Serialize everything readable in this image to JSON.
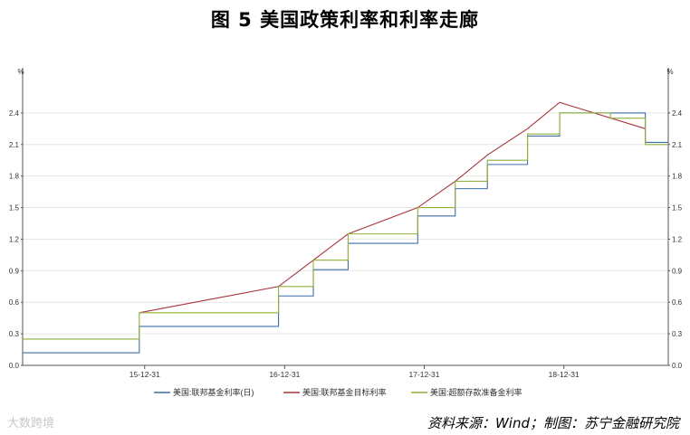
{
  "title": "图 5  美国政策利率和利率走廊",
  "source": "资料来源：Wind；制图：苏宁金融研究院",
  "watermark": "大数跨境",
  "chart_data": {
    "type": "line",
    "y_unit_left": "%",
    "y_unit_right": "%",
    "ylim": [
      0,
      2.7
    ],
    "yticks": [
      "0.0",
      "0.3",
      "0.6",
      "0.9",
      "1.2",
      "1.5",
      "1.8",
      "2.1",
      "2.4"
    ],
    "xlim": [
      "2015-02-15",
      "2019-09-30"
    ],
    "xticks": [
      {
        "date": "2015-12-31",
        "label": "15-12-31"
      },
      {
        "date": "2016-12-31",
        "label": "16-12-31"
      },
      {
        "date": "2017-12-31",
        "label": "17-12-31"
      },
      {
        "date": "2018-12-31",
        "label": "18-12-31"
      }
    ],
    "grid": true,
    "legend_position": "bottom",
    "colors": {
      "effr": "#3b6fa8",
      "target": "#a8343c",
      "ioer": "#8fb03a"
    },
    "series": [
      {
        "name": "美国:联邦基金利率(日)",
        "key": "effr",
        "steps": [
          [
            "2015-02-15",
            0.12
          ],
          [
            "2015-12-17",
            0.37
          ],
          [
            "2016-12-15",
            0.66
          ],
          [
            "2017-03-16",
            0.91
          ],
          [
            "2017-06-15",
            1.16
          ],
          [
            "2017-12-14",
            1.42
          ],
          [
            "2018-03-22",
            1.68
          ],
          [
            "2018-06-14",
            1.91
          ],
          [
            "2018-09-27",
            2.18
          ],
          [
            "2018-12-20",
            2.4
          ],
          [
            "2019-08-01",
            2.12
          ],
          [
            "2019-09-30",
            2.12
          ]
        ]
      },
      {
        "name": "美国:联邦基金目标利率",
        "key": "target",
        "points": [
          [
            "2015-12-17",
            0.5
          ],
          [
            "2016-12-15",
            0.75
          ],
          [
            "2017-03-16",
            1.0
          ],
          [
            "2017-06-15",
            1.25
          ],
          [
            "2017-12-14",
            1.5
          ],
          [
            "2018-03-22",
            1.75
          ],
          [
            "2018-06-14",
            2.0
          ],
          [
            "2018-09-27",
            2.25
          ],
          [
            "2018-12-20",
            2.5
          ],
          [
            "2019-08-01",
            2.25
          ]
        ]
      },
      {
        "name": "美国:超额存款准备金利率",
        "key": "ioer",
        "steps": [
          [
            "2015-02-15",
            0.25
          ],
          [
            "2015-12-17",
            0.5
          ],
          [
            "2016-12-15",
            0.75
          ],
          [
            "2017-03-16",
            1.0
          ],
          [
            "2017-06-15",
            1.25
          ],
          [
            "2017-12-14",
            1.5
          ],
          [
            "2018-03-22",
            1.75
          ],
          [
            "2018-06-14",
            1.95
          ],
          [
            "2018-09-27",
            2.2
          ],
          [
            "2018-12-20",
            2.4
          ],
          [
            "2019-05-02",
            2.35
          ],
          [
            "2019-08-01",
            2.1
          ],
          [
            "2019-09-30",
            2.1
          ]
        ]
      }
    ]
  }
}
